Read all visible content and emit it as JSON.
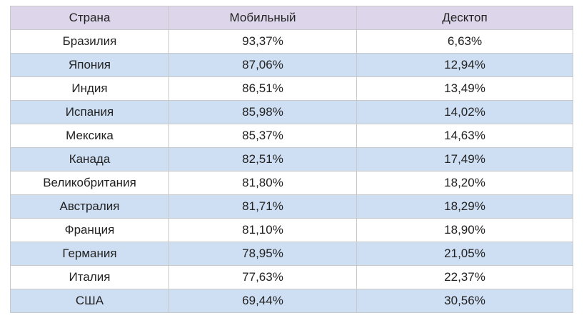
{
  "table": {
    "headers": [
      "Страна",
      "Мобильный",
      "Десктоп"
    ],
    "rows": [
      [
        "Бразилия",
        "93,37%",
        "6,63%"
      ],
      [
        "Япония",
        "87,06%",
        "12,94%"
      ],
      [
        "Индия",
        "86,51%",
        "13,49%"
      ],
      [
        "Испания",
        "85,98%",
        "14,02%"
      ],
      [
        "Мексика",
        "85,37%",
        "14,63%"
      ],
      [
        "Канада",
        "82,51%",
        "17,49%"
      ],
      [
        "Великобритания",
        "81,80%",
        "18,20%"
      ],
      [
        "Австралия",
        "81,71%",
        "18,29%"
      ],
      [
        "Франция",
        "81,10%",
        "18,90%"
      ],
      [
        "Германия",
        "78,95%",
        "21,05%"
      ],
      [
        "Италия",
        "77,63%",
        "22,37%"
      ],
      [
        "США",
        "69,44%",
        "30,56%"
      ]
    ]
  },
  "colors": {
    "header_bg": "#ddd5ea",
    "stripe_bg": "#cfdff3",
    "row_bg": "#ffffff",
    "border": "#c9c9c9"
  }
}
